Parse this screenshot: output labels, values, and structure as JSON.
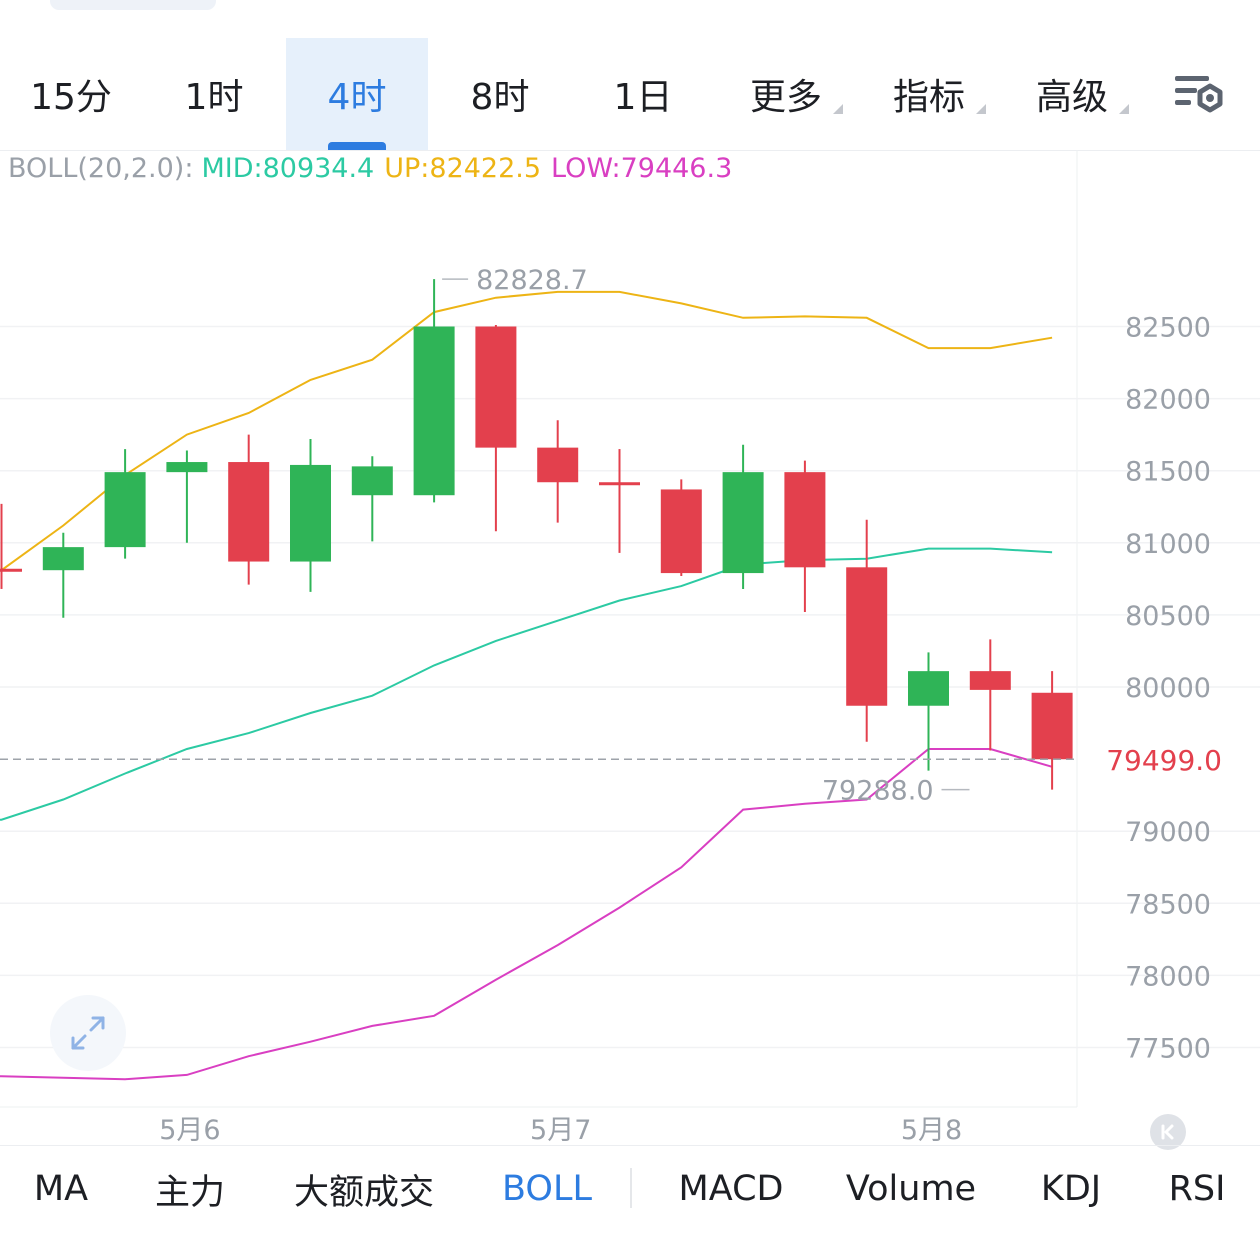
{
  "timeframes": [
    {
      "label": "15分",
      "active": false,
      "dropdown": false
    },
    {
      "label": "1时",
      "active": false,
      "dropdown": false
    },
    {
      "label": "4时",
      "active": true,
      "dropdown": false
    },
    {
      "label": "8时",
      "active": false,
      "dropdown": false
    },
    {
      "label": "1日",
      "active": false,
      "dropdown": false
    },
    {
      "label": "更多",
      "active": false,
      "dropdown": true
    },
    {
      "label": "指标",
      "active": false,
      "dropdown": true
    },
    {
      "label": "高级",
      "active": false,
      "dropdown": true
    }
  ],
  "settings_icon": "chart-settings-icon",
  "boll": {
    "name": "BOLL(20,2.0):",
    "mid": "MID:80934.4",
    "up": "UP:82422.5",
    "low": "LOW:79446.3"
  },
  "colors": {
    "up_candle": "#2fb457",
    "down_candle": "#e3404d",
    "mid": "#2ccaa3",
    "up": "#edb415",
    "low": "#d93fc2",
    "accent": "#2d7ce0",
    "price_label": "#e3404d",
    "axis_text": "#9aa0a8"
  },
  "chart_data": {
    "type": "candlestick",
    "interval": "4时",
    "y_ticks": [
      82500,
      82000,
      81500,
      81000,
      80500,
      80000,
      79000,
      78500,
      78000,
      77500
    ],
    "ylim": [
      77100,
      83250
    ],
    "x_labels": [
      {
        "label": "5月6",
        "index": 3
      },
      {
        "label": "5月7",
        "index": 9
      },
      {
        "label": "5月8",
        "index": 15
      }
    ],
    "current_price": 79499.0,
    "current_price_label": "79499.0",
    "high_label": {
      "text": "82828.7",
      "index": 7,
      "value": 82828.7
    },
    "low_label": {
      "text": "79288.0",
      "index": 15,
      "value": 79288.0
    },
    "candles": [
      {
        "open": 80820,
        "close": 80810,
        "high": 81270,
        "low": 80680
      },
      {
        "open": 80810,
        "close": 80970,
        "high": 81070,
        "low": 80480
      },
      {
        "open": 80970,
        "close": 81490,
        "high": 81650,
        "low": 80890
      },
      {
        "open": 81490,
        "close": 81560,
        "high": 81640,
        "low": 81000
      },
      {
        "open": 81560,
        "close": 80870,
        "high": 81750,
        "low": 80710
      },
      {
        "open": 80870,
        "close": 81540,
        "high": 81720,
        "low": 80660
      },
      {
        "open": 81330,
        "close": 81530,
        "high": 81600,
        "low": 81010
      },
      {
        "open": 81330,
        "close": 82500,
        "high": 82828.7,
        "low": 81280
      },
      {
        "open": 82500,
        "close": 81660,
        "high": 82510,
        "low": 81080
      },
      {
        "open": 81660,
        "close": 81420,
        "high": 81850,
        "low": 81140
      },
      {
        "open": 81420,
        "close": 81400,
        "high": 81650,
        "low": 80930
      },
      {
        "open": 81370,
        "close": 80790,
        "high": 81440,
        "low": 80770
      },
      {
        "open": 80790,
        "close": 81490,
        "high": 81680,
        "low": 80680
      },
      {
        "open": 81490,
        "close": 80830,
        "high": 81570,
        "low": 80520
      },
      {
        "open": 80830,
        "close": 79870,
        "high": 81160,
        "low": 79620
      },
      {
        "open": 79870,
        "close": 80110,
        "high": 80240,
        "low": 79420
      },
      {
        "open": 80110,
        "close": 79980,
        "high": 80330,
        "low": 79560
      },
      {
        "open": 79960,
        "close": 79499.0,
        "high": 80110,
        "low": 79288.0
      }
    ],
    "series": [
      {
        "name": "UP",
        "values": [
          80810,
          81120,
          81470,
          81750,
          81900,
          82130,
          82270,
          82600,
          82700,
          82740,
          82740,
          82660,
          82560,
          82570,
          82560,
          82350,
          82350,
          82422.5
        ]
      },
      {
        "name": "MID",
        "values": [
          79080,
          79220,
          79400,
          79570,
          79680,
          79820,
          79940,
          80150,
          80320,
          80460,
          80600,
          80700,
          80850,
          80880,
          80890,
          80960,
          80960,
          80934.4
        ]
      },
      {
        "name": "LOW",
        "values": [
          77300,
          77290,
          77280,
          77310,
          77440,
          77540,
          77650,
          77720,
          77970,
          78210,
          78470,
          78750,
          79150,
          79190,
          79220,
          79570,
          79570,
          79446.3
        ]
      }
    ]
  },
  "indicators": [
    {
      "label": "MA",
      "active": false
    },
    {
      "label": "主力",
      "active": false
    },
    {
      "label": "大额成交",
      "active": false
    },
    {
      "label": "BOLL",
      "active": true
    },
    {
      "label": "MACD",
      "active": false
    },
    {
      "label": "Volume",
      "active": false
    },
    {
      "label": "KDJ",
      "active": false
    },
    {
      "label": "RSI",
      "active": false
    }
  ],
  "expand_icon": "expand-arrows-icon",
  "scroll_end_icon": "scroll-to-latest-icon"
}
